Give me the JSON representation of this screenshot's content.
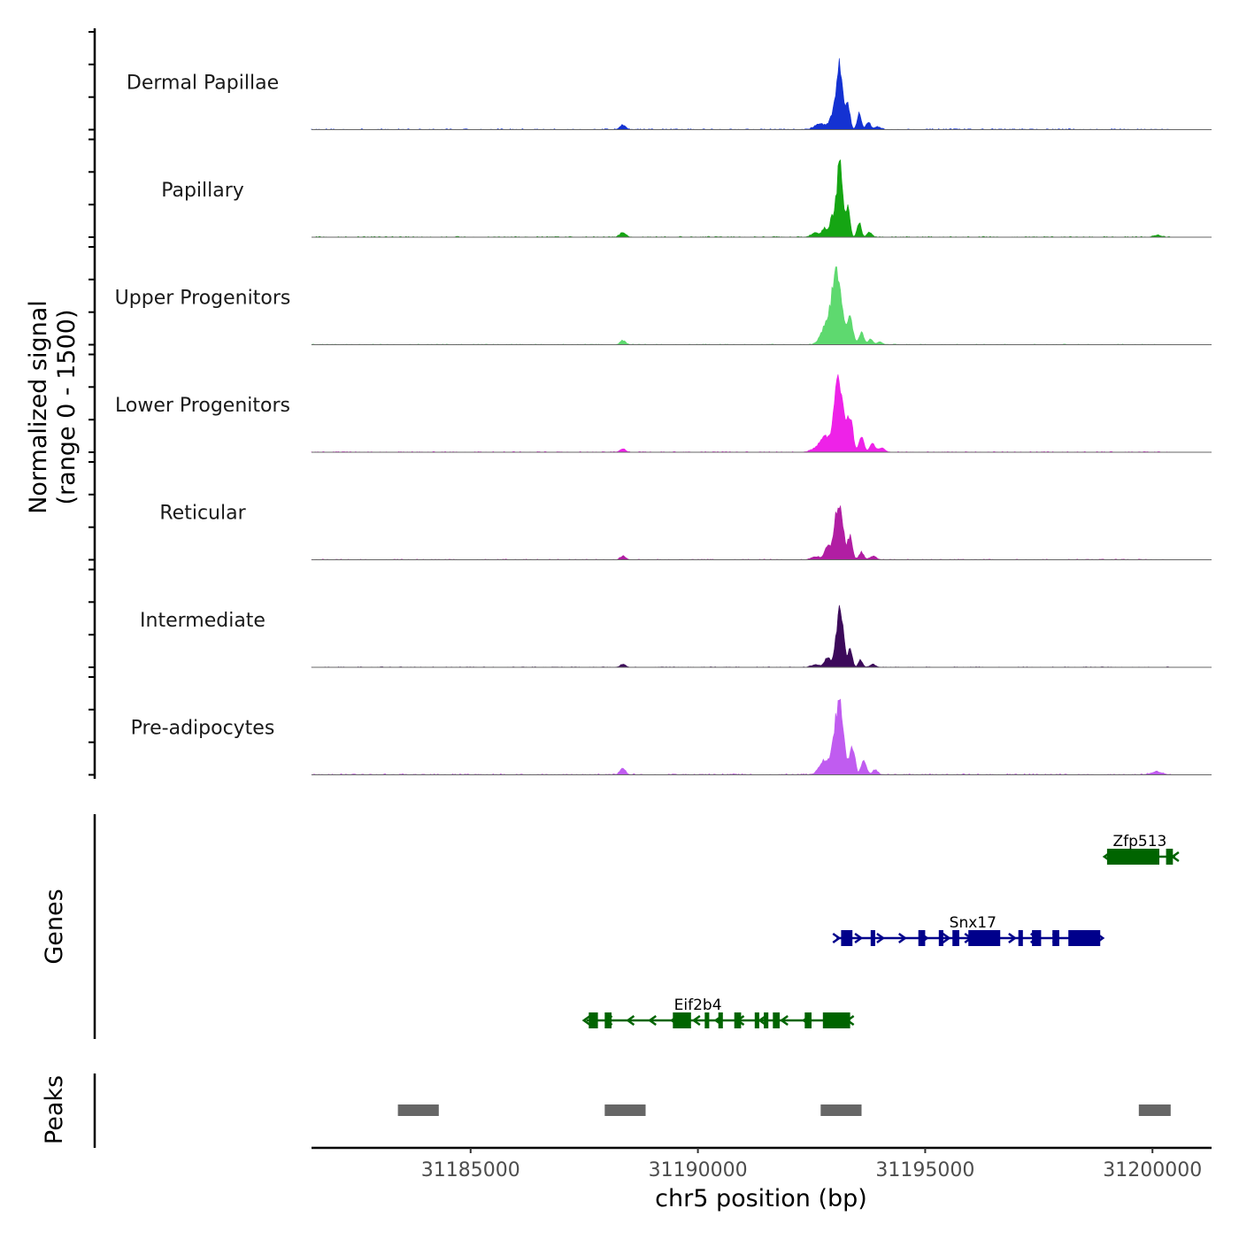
{
  "chart_data": {
    "type": "area",
    "title": "",
    "xlabel": "chr5 position (bp)",
    "ylabel_line1": "Normalized signal",
    "ylabel_line2": "(range 0 - 1500)",
    "ylim": [
      0,
      1500
    ],
    "xlim": [
      31181500,
      31201300
    ],
    "x_ticks": [
      31185000,
      31190000,
      31195000,
      31200000
    ],
    "x_tick_labels": [
      "31185000",
      "31190000",
      "31195000",
      "31200000"
    ],
    "data_extent": [
      31181500,
      31200400
    ],
    "series": [
      {
        "name": "Dermal Papillae",
        "color": "#1432d2",
        "peaks": [
          {
            "center": 31188350,
            "height": 95,
            "width": 60
          },
          {
            "center": 31192700,
            "height": 120,
            "width": 120
          },
          {
            "center": 31192950,
            "height": 250,
            "width": 60
          },
          {
            "center": 31193120,
            "height": 1340,
            "width": 70
          },
          {
            "center": 31193300,
            "height": 500,
            "width": 45
          },
          {
            "center": 31193550,
            "height": 330,
            "width": 45
          },
          {
            "center": 31193750,
            "height": 140,
            "width": 50
          },
          {
            "center": 31193950,
            "height": 60,
            "width": 60
          }
        ],
        "noise_level": 18
      },
      {
        "name": "Papillary",
        "color": "#15a513",
        "peaks": [
          {
            "center": 31188350,
            "height": 95,
            "width": 60
          },
          {
            "center": 31192600,
            "height": 80,
            "width": 100
          },
          {
            "center": 31192800,
            "height": 170,
            "width": 60
          },
          {
            "center": 31192950,
            "height": 330,
            "width": 50
          },
          {
            "center": 31193120,
            "height": 1450,
            "width": 70
          },
          {
            "center": 31193300,
            "height": 520,
            "width": 45
          },
          {
            "center": 31193550,
            "height": 280,
            "width": 45
          },
          {
            "center": 31193780,
            "height": 90,
            "width": 50
          },
          {
            "center": 31200100,
            "height": 40,
            "width": 80
          }
        ],
        "noise_level": 16
      },
      {
        "name": "Upper Progenitors",
        "color": "#5ed96f",
        "peaks": [
          {
            "center": 31188350,
            "height": 80,
            "width": 60
          },
          {
            "center": 31192800,
            "height": 300,
            "width": 110
          },
          {
            "center": 31193050,
            "height": 1370,
            "width": 110
          },
          {
            "center": 31193350,
            "height": 530,
            "width": 60
          },
          {
            "center": 31193600,
            "height": 260,
            "width": 50
          },
          {
            "center": 31193800,
            "height": 120,
            "width": 50
          },
          {
            "center": 31194000,
            "height": 50,
            "width": 60
          }
        ],
        "noise_level": 12
      },
      {
        "name": "Lower Progenitors",
        "color": "#ee22e8",
        "peaks": [
          {
            "center": 31188350,
            "height": 70,
            "width": 60
          },
          {
            "center": 31192600,
            "height": 60,
            "width": 120
          },
          {
            "center": 31192800,
            "height": 280,
            "width": 110
          },
          {
            "center": 31193100,
            "height": 1400,
            "width": 100
          },
          {
            "center": 31193350,
            "height": 650,
            "width": 60
          },
          {
            "center": 31193600,
            "height": 330,
            "width": 55
          },
          {
            "center": 31193850,
            "height": 170,
            "width": 60
          },
          {
            "center": 31194050,
            "height": 80,
            "width": 60
          }
        ],
        "noise_level": 14
      },
      {
        "name": "Reticular",
        "color": "#b11ea3",
        "peaks": [
          {
            "center": 31188350,
            "height": 70,
            "width": 60
          },
          {
            "center": 31192600,
            "height": 60,
            "width": 100
          },
          {
            "center": 31192850,
            "height": 240,
            "width": 60
          },
          {
            "center": 31193100,
            "height": 1180,
            "width": 90
          },
          {
            "center": 31193350,
            "height": 430,
            "width": 50
          },
          {
            "center": 31193600,
            "height": 150,
            "width": 50
          },
          {
            "center": 31193850,
            "height": 70,
            "width": 70
          }
        ],
        "noise_level": 12
      },
      {
        "name": "Intermediate",
        "color": "#3c0a5a",
        "peaks": [
          {
            "center": 31188350,
            "height": 60,
            "width": 60
          },
          {
            "center": 31192600,
            "height": 50,
            "width": 100
          },
          {
            "center": 31192850,
            "height": 180,
            "width": 60
          },
          {
            "center": 31193120,
            "height": 1080,
            "width": 80
          },
          {
            "center": 31193350,
            "height": 350,
            "width": 45
          },
          {
            "center": 31193580,
            "height": 150,
            "width": 45
          },
          {
            "center": 31193850,
            "height": 60,
            "width": 60
          }
        ],
        "noise_level": 10
      },
      {
        "name": "Pre-adipocytes",
        "color": "#c05cf0",
        "peaks": [
          {
            "center": 31188350,
            "height": 130,
            "width": 60
          },
          {
            "center": 31192800,
            "height": 300,
            "width": 110
          },
          {
            "center": 31193100,
            "height": 1400,
            "width": 100
          },
          {
            "center": 31193400,
            "height": 520,
            "width": 55
          },
          {
            "center": 31193650,
            "height": 250,
            "width": 55
          },
          {
            "center": 31193900,
            "height": 100,
            "width": 60
          },
          {
            "center": 31200100,
            "height": 60,
            "width": 120
          }
        ],
        "noise_level": 22
      }
    ],
    "genes_track_label": "Genes",
    "genes": [
      {
        "name": "Zfp513",
        "start": 31199000,
        "end": 31200500,
        "strand": "-",
        "row": 1,
        "color": "#006400",
        "exons": [
          [
            31199000,
            31200150
          ],
          [
            31200300,
            31200450
          ]
        ]
      },
      {
        "name": "Snx17",
        "start": 31193050,
        "end": 31198850,
        "strand": "+",
        "row": 2,
        "color": "#00008b",
        "exons": [
          [
            31193150,
            31193400
          ],
          [
            31193800,
            31193900
          ],
          [
            31194850,
            31195000
          ],
          [
            31195300,
            31195400
          ],
          [
            31195600,
            31195750
          ],
          [
            31195950,
            31196650
          ],
          [
            31197050,
            31197150
          ],
          [
            31197350,
            31197550
          ],
          [
            31197800,
            31197950
          ],
          [
            31198150,
            31198850
          ]
        ]
      },
      {
        "name": "Eif2b4",
        "start": 31187550,
        "end": 31193350,
        "strand": "-",
        "row": 3,
        "color": "#006400",
        "exons": [
          [
            31187600,
            31187800
          ],
          [
            31187950,
            31188100
          ],
          [
            31189450,
            31189850
          ],
          [
            31190150,
            31190250
          ],
          [
            31190450,
            31190550
          ],
          [
            31190800,
            31190950
          ],
          [
            31191250,
            31191350
          ],
          [
            31191450,
            31191550
          ],
          [
            31191650,
            31191800
          ],
          [
            31192350,
            31192500
          ],
          [
            31192750,
            31193350
          ]
        ]
      }
    ],
    "peaks_track_label": "Peaks",
    "peak_regions": [
      [
        31183400,
        31184300
      ],
      [
        31187950,
        31188850
      ],
      [
        31192700,
        31193600
      ],
      [
        31199700,
        31200400
      ]
    ]
  }
}
